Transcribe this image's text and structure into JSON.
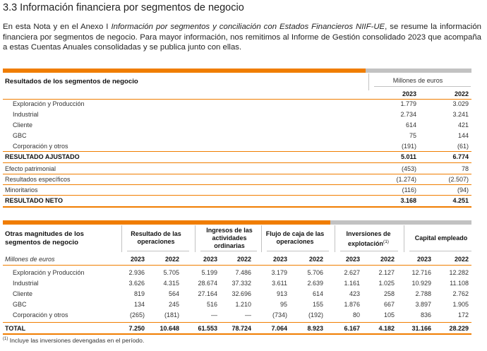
{
  "section_title": "3.3 Información financiera por segmentos de negocio",
  "intro": {
    "p1": "En esta Nota y en el Anexo I ",
    "italic": "Información por segmentos y conciliación con Estados Financieros NIIF-UE",
    "p2": ", se resume la información financiera por segmentos de negocio. Para mayor información, nos remitimos al Informe de Gestión consolidado  2023 que acompaña a estas Cuentas Anuales consolidadas y se publica junto con ellas."
  },
  "table1": {
    "header": "Resultados de los segmentos de negocio",
    "units": "Millones de euros",
    "years": [
      "2023",
      "2022"
    ],
    "segments": [
      {
        "label": "Exploración y Producción",
        "v2023": "1.779",
        "v2022": "3.029"
      },
      {
        "label": "Industrial",
        "v2023": "2.734",
        "v2022": "3.241"
      },
      {
        "label": "Cliente",
        "v2023": "614",
        "v2022": "421"
      },
      {
        "label": "GBC",
        "v2023": "75",
        "v2022": "144"
      },
      {
        "label": "Corporación y otros",
        "v2023": "(191)",
        "v2022": "(61)"
      }
    ],
    "adjusted": {
      "label": "RESULTADO AJUSTADO",
      "v2023": "5.011",
      "v2022": "6.774"
    },
    "adjustments": [
      {
        "label": "Efecto patrimonial",
        "v2023": "(453)",
        "v2022": "78"
      },
      {
        "label": "Resultados específicos",
        "v2023": "(1.274)",
        "v2022": "(2.507)"
      },
      {
        "label": "Minoritarios",
        "v2023": "(116)",
        "v2022": "(94)"
      }
    ],
    "net": {
      "label": "RESULTADO NETO",
      "v2023": "3.168",
      "v2022": "4.251"
    }
  },
  "table2": {
    "header": "Otras magnitudes de los segmentos de negocio",
    "units": "Millones de euros",
    "groups": [
      "Resultado de las operaciones",
      "Ingresos de las actividades ordinarias",
      "Flujo de caja de las operaciones",
      "Inversiones de explotación",
      "Capital empleado"
    ],
    "footnote_mark": "(1)",
    "years": [
      "2023",
      "2022",
      "2023",
      "2022",
      "2023",
      "2022",
      "2023",
      "2022",
      "2023",
      "2022"
    ],
    "rows": [
      {
        "label": "Exploración y Producción",
        "values": [
          "2.936",
          "5.705",
          "5.199",
          "7.486",
          "3.179",
          "5.706",
          "2.627",
          "2.127",
          "12.716",
          "12.282"
        ]
      },
      {
        "label": "Industrial",
        "values": [
          "3.626",
          "4.315",
          "28.674",
          "37.332",
          "3.611",
          "2.639",
          "1.161",
          "1.025",
          "10.929",
          "11.108"
        ]
      },
      {
        "label": "Cliente",
        "values": [
          "819",
          "564",
          "27.164",
          "32.696",
          "913",
          "614",
          "423",
          "258",
          "2.788",
          "2.762"
        ]
      },
      {
        "label": "GBC",
        "values": [
          "134",
          "245",
          "516",
          "1.210",
          "95",
          "155",
          "1.876",
          "667",
          "3.897",
          "1.905"
        ]
      },
      {
        "label": "Corporación y otros",
        "values": [
          "(265)",
          "(181)",
          "—",
          "—",
          "(734)",
          "(192)",
          "80",
          "105",
          "836",
          "172"
        ]
      }
    ],
    "total": {
      "label": "TOTAL",
      "values": [
        "7.250",
        "10.648",
        "61.553",
        "78.724",
        "7.064",
        "8.923",
        "6.167",
        "4.182",
        "31.166",
        "28.229"
      ]
    }
  },
  "footnote": {
    "mark": "(1)",
    "text": " Incluye las inversiones devengadas en el período."
  }
}
